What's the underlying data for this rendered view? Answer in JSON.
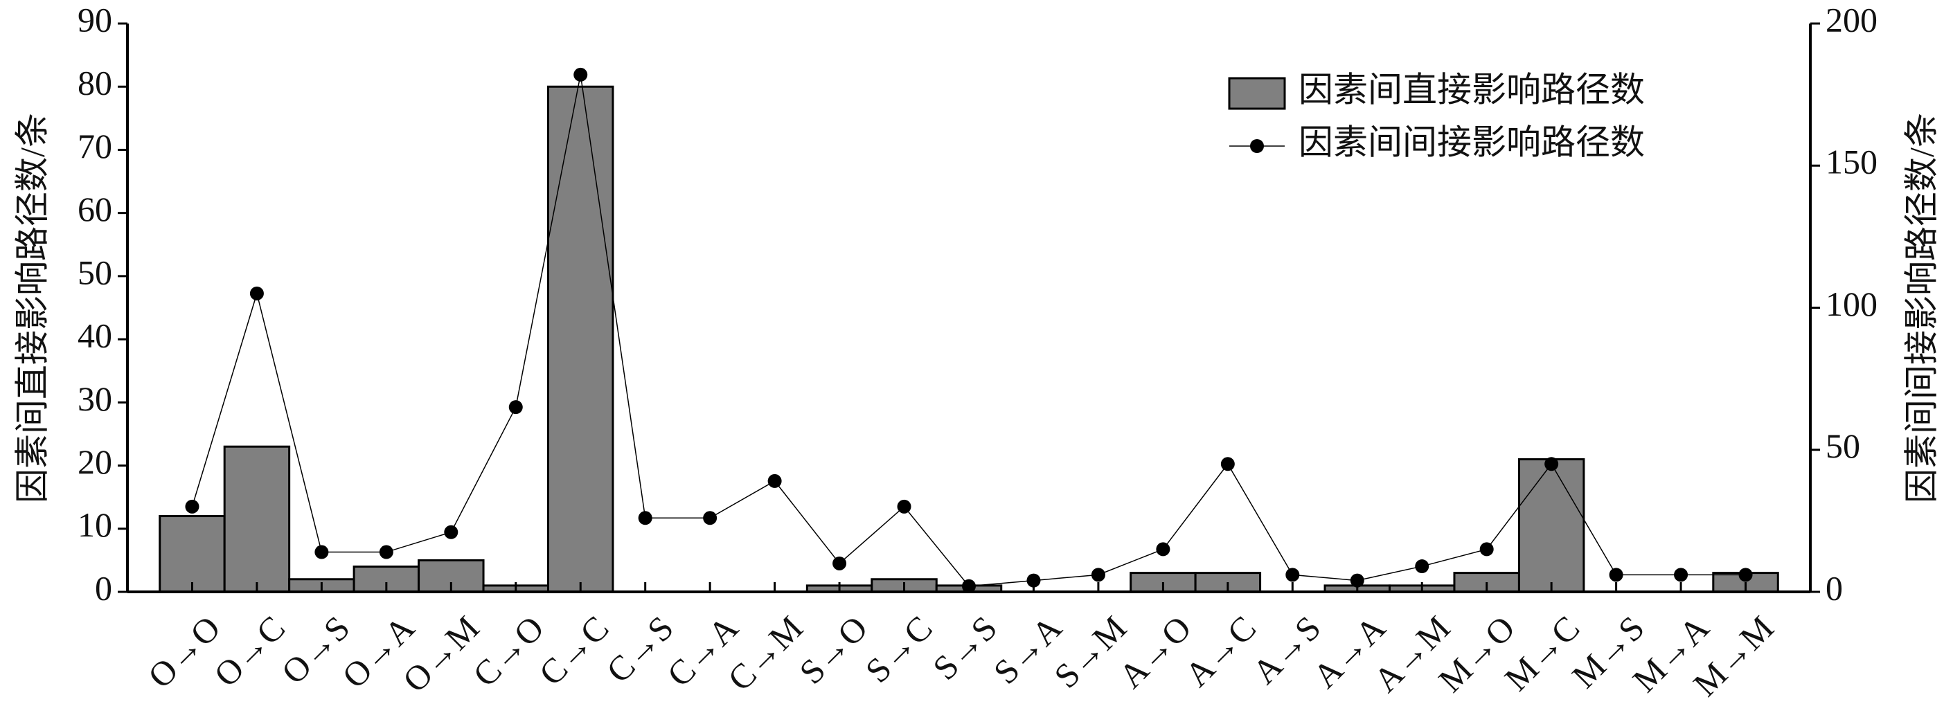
{
  "chart_data": {
    "type": "bar_line",
    "categories": [
      "O→O",
      "O→C",
      "O→S",
      "O→A",
      "O→M",
      "C→O",
      "C→C",
      "C→S",
      "C→A",
      "C→M",
      "S→O",
      "S→C",
      "S→S",
      "S→A",
      "S→M",
      "A→O",
      "A→C",
      "A→S",
      "A→A",
      "A→M",
      "M→O",
      "M→C",
      "M→S",
      "M→A",
      "M→M"
    ],
    "series": [
      {
        "name": "因素间直接影响路径数",
        "type": "bar",
        "color": "#808080",
        "values": [
          12,
          23,
          2,
          4,
          5,
          1,
          80,
          0,
          0,
          0,
          1,
          2,
          1,
          0,
          0,
          3,
          3,
          0,
          1,
          1,
          3,
          21,
          0,
          0,
          3
        ]
      },
      {
        "name": "因素间间接影响路径数",
        "type": "line",
        "axis": "y2",
        "color": "#000000",
        "values": [
          30,
          105,
          14,
          14,
          21,
          65,
          182,
          26,
          26,
          39,
          10,
          30,
          2,
          4,
          6,
          15,
          45,
          6,
          4,
          9,
          15,
          45,
          6,
          6,
          6
        ]
      }
    ],
    "ylabel": "因素间直接影响路径数/条",
    "y2label": "因素间间接影响路径数/条",
    "ylim": [
      0,
      90
    ],
    "yticks": [
      0,
      10,
      20,
      30,
      40,
      50,
      60,
      70,
      80,
      90
    ],
    "y2lim": [
      0,
      200
    ],
    "y2ticks": [
      0,
      50,
      100,
      150,
      200
    ],
    "legend": "upper right"
  }
}
